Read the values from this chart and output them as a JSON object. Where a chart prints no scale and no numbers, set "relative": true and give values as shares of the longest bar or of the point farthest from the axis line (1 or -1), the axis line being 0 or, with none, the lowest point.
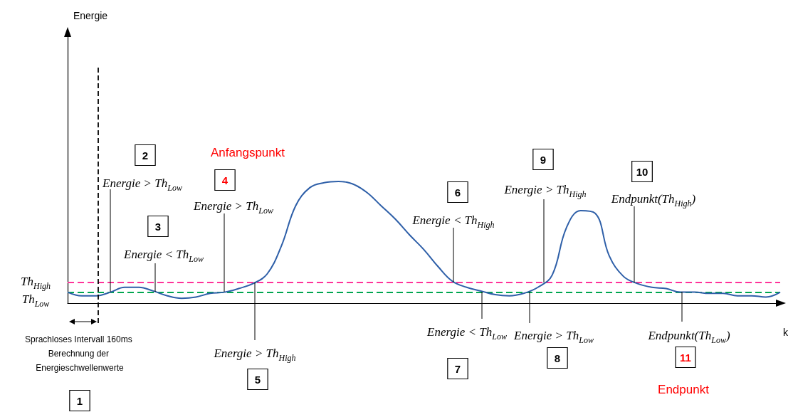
{
  "chart_data": {
    "type": "line",
    "relative": true,
    "xlabel": "k",
    "color": "#2e5fa8",
    "line_style": "solid",
    "marker": "none",
    "grid": false,
    "categories": [
      null,
      null,
      null,
      null,
      null,
      null,
      null,
      null,
      null,
      null,
      null,
      null,
      null,
      null,
      null,
      null,
      null,
      null,
      null,
      null,
      null,
      null,
      null,
      null,
      null,
      null,
      null,
      null,
      null,
      null,
      null,
      null,
      null,
      null,
      null,
      null,
      null,
      null,
      null,
      null,
      null,
      null,
      null,
      null,
      null,
      null,
      null,
      null,
      null,
      null,
      null
    ],
    "values": [
      0.09,
      0.06,
      0.06,
      0.09,
      0.13,
      0.13,
      0.1,
      0.06,
      0.04,
      0.05,
      0.08,
      0.09,
      0.12,
      0.16,
      0.24,
      0.47,
      0.8,
      0.95,
      0.99,
      1,
      0.98,
      0.91,
      0.8,
      0.69,
      0.56,
      0.44,
      0.3,
      0.18,
      0.13,
      0.1,
      0.07,
      0.06,
      0.08,
      0.13,
      0.23,
      0.62,
      0.76,
      0.74,
      0.39,
      0.22,
      0.16,
      0.13,
      0.12,
      0.09,
      0.09,
      0.08,
      0.08,
      0.06,
      0.06,
      0.05,
      0.09
    ],
    "ref_lines": [
      {
        "axis": "y",
        "value": 0.17,
        "label": "Th$_{High}$",
        "color": "#ff3399",
        "line_style": "dashed"
      },
      {
        "axis": "y",
        "value": 0.09,
        "label": "Th$_{Low}$",
        "color": "#00a650",
        "line_style": "dashed"
      }
    ],
    "annotations": [
      "1",
      "2",
      "Energie > Th$_{Low}$",
      "3",
      "Energie < Th$_{Low}$",
      "Anfangspunkt",
      "4",
      "Energie > Th$_{Low}$",
      "Energie > Th$_{High}$",
      "5",
      "6",
      "Energie < Th$_{High}$",
      "Energie < Th$_{Low}$",
      "7",
      "9",
      "Energie > Th$_{High}$",
      "Energie > Th$_{Low}$",
      "8",
      "10",
      "Endpunkt(Th$_{High}$)",
      "Endpunkt(Th$_{Low}$)",
      "11",
      "Endpunkt",
      "Sprachloses Intervall 160ms Berechnung der Energieschwellenwerte",
      "Energie"
    ]
  }
}
